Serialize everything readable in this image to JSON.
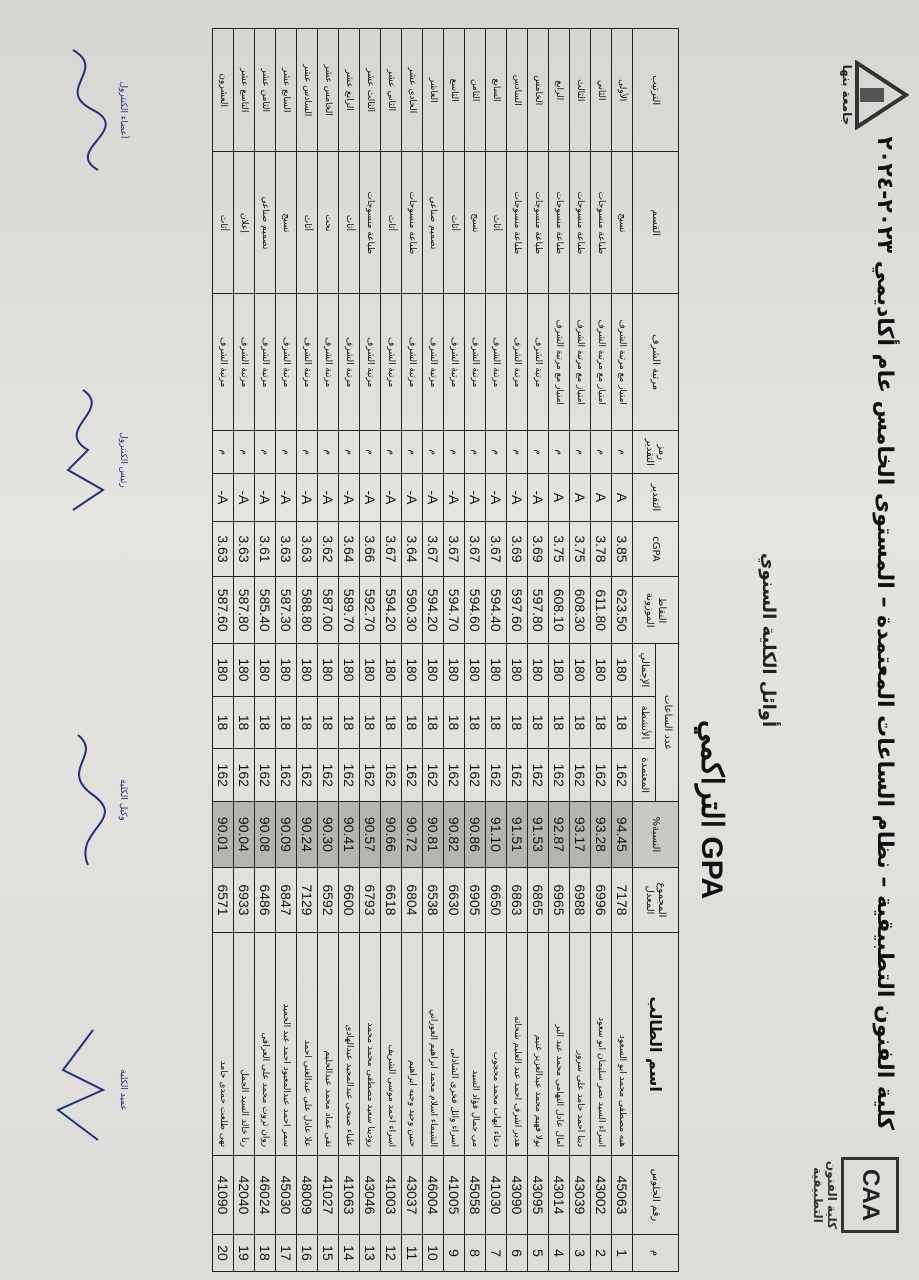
{
  "header": {
    "faculty_logo_text": "كلية الفنون التطبيقية",
    "university_logo_text": "جامعة بنها",
    "title": "كلية الفنون التطبيقية – نظام الساعات المعتمدة – المستوى الخامس عام أكاديمي ٢٠٢٣-٢٠٢٤",
    "subtitle": "أوائل الكلية السنوي",
    "gpa_title": "GPA التراكمي"
  },
  "table": {
    "columns": {
      "index": "م",
      "seat": "رقم الجلوس",
      "name": "اسم الطالب",
      "total": "المجموع المعدل",
      "percent": "النسبة%",
      "hours": "عدد الساعات",
      "hours_credit": "المعتمدة",
      "hours_activity": "الأنشطة",
      "hours_total": "الإجمالي",
      "points": "النقاط الموزونة",
      "cgpa": "cGPA",
      "grade": "التقدير",
      "grade_code": "رمز التقدير",
      "honor": "مرتبة الشرف",
      "department": "القسم",
      "rank": "الترتيب"
    },
    "rows": [
      {
        "n": "1",
        "seat": "45063",
        "name": "هبه مصطفى محمد ابو السعود",
        "total": "7178",
        "pct": "94.45",
        "h1": "162",
        "h2": "18",
        "h3": "180",
        "pts": "623.50",
        "cgpa": "3.85",
        "grade": "A",
        "code": "م",
        "honor": "امتياز مع مرتبة الشرف",
        "dept": "نسيج",
        "rank": "الأولى"
      },
      {
        "n": "2",
        "seat": "43002",
        "name": "اسراء السيد نصر سليمان ابو سعود",
        "total": "6996",
        "pct": "93.28",
        "h1": "162",
        "h2": "18",
        "h3": "180",
        "pts": "611.80",
        "cgpa": "3.78",
        "grade": "A",
        "code": "م",
        "honor": "امتياز مع مرتبة الشرف",
        "dept": "طباعة منسوجات",
        "rank": "الثاني"
      },
      {
        "n": "3",
        "seat": "43039",
        "name": "دينا احمد حامد على سرور",
        "total": "6988",
        "pct": "93.17",
        "h1": "162",
        "h2": "18",
        "h3": "180",
        "pts": "608.30",
        "cgpa": "3.75",
        "grade": "A",
        "code": "م",
        "honor": "امتياز مع مرتبة الشرف",
        "dept": "طباعة منسوجات",
        "rank": "الثالث"
      },
      {
        "n": "4",
        "seat": "43014",
        "name": "امال عادل التهامى محمد عبد البر",
        "total": "6965",
        "pct": "92.87",
        "h1": "162",
        "h2": "18",
        "h3": "180",
        "pts": "608.10",
        "cgpa": "3.75",
        "grade": "A",
        "code": "م",
        "honor": "امتياز مع مرتبة الشرف",
        "dept": "طباعة منسوجات",
        "rank": "الرابع"
      },
      {
        "n": "5",
        "seat": "43095",
        "name": "بولا فهيم محمد عبدالعزيز غنيم",
        "total": "6865",
        "pct": "91.53",
        "h1": "162",
        "h2": "18",
        "h3": "180",
        "pts": "597.80",
        "cgpa": "3.69",
        "grade": "A-",
        "code": "م",
        "honor": "مرتبة الشرف",
        "dept": "طباعة منسوجات",
        "rank": "الخامس"
      },
      {
        "n": "6",
        "seat": "43090",
        "name": "هدير اشرف احمد عبد العليم شحاته",
        "total": "6863",
        "pct": "91.51",
        "h1": "162",
        "h2": "18",
        "h3": "180",
        "pts": "597.60",
        "cgpa": "3.69",
        "grade": "A-",
        "code": "م",
        "honor": "مرتبة الشرف",
        "dept": "طباعة منسوجات",
        "rank": "السادس"
      },
      {
        "n": "7",
        "seat": "41030",
        "name": "دعاء ايهاب محمد محجوب",
        "total": "6650",
        "pct": "91.10",
        "h1": "162",
        "h2": "18",
        "h3": "180",
        "pts": "594.40",
        "cgpa": "3.67",
        "grade": "A-",
        "code": "م",
        "honor": "مرتبة الشرف",
        "dept": "أثاث",
        "rank": "السابع"
      },
      {
        "n": "8",
        "seat": "45058",
        "name": "مى جمال فؤاد السيد",
        "total": "6905",
        "pct": "90.86",
        "h1": "162",
        "h2": "18",
        "h3": "180",
        "pts": "594.60",
        "cgpa": "3.67",
        "grade": "A-",
        "code": "م",
        "honor": "مرتبة الشرف",
        "dept": "نسيج",
        "rank": "الثامن"
      },
      {
        "n": "9",
        "seat": "41005",
        "name": "اسراء وائل فخرى الشاذلى",
        "total": "6630",
        "pct": "90.82",
        "h1": "162",
        "h2": "18",
        "h3": "180",
        "pts": "594.70",
        "cgpa": "3.67",
        "grade": "A-",
        "code": "م",
        "honor": "مرتبة الشرف",
        "dept": "أثاث",
        "rank": "التاسع"
      },
      {
        "n": "10",
        "seat": "46004",
        "name": "الشيماء اسلام محمد ابراهيم العوراني",
        "total": "6538",
        "pct": "90.81",
        "h1": "162",
        "h2": "18",
        "h3": "180",
        "pts": "594.20",
        "cgpa": "3.67",
        "grade": "A-",
        "code": "م",
        "honor": "مرتبة الشرف",
        "dept": "تصميم صناعي",
        "rank": "العاشر"
      },
      {
        "n": "11",
        "seat": "43037",
        "name": "حنين وحيد وجيه ابراهيم",
        "total": "6804",
        "pct": "90.72",
        "h1": "162",
        "h2": "18",
        "h3": "180",
        "pts": "590.30",
        "cgpa": "3.64",
        "grade": "A-",
        "code": "م",
        "honor": "مرتبة الشرف",
        "dept": "طباعة منسوجات",
        "rank": "الحادي عشر"
      },
      {
        "n": "12",
        "seat": "41003",
        "name": "اسراء احمد موسى الشريف",
        "total": "6618",
        "pct": "90.66",
        "h1": "162",
        "h2": "18",
        "h3": "180",
        "pts": "594.20",
        "cgpa": "3.67",
        "grade": "A-",
        "code": "م",
        "honor": "مرتبة الشرف",
        "dept": "أثاث",
        "rank": "الثاني عشر"
      },
      {
        "n": "13",
        "seat": "43046",
        "name": "رودينا سعيد مصطفى محمد محمد",
        "total": "6793",
        "pct": "90.57",
        "h1": "162",
        "h2": "18",
        "h3": "180",
        "pts": "592.70",
        "cgpa": "3.66",
        "grade": "A-",
        "code": "م",
        "honor": "مرتبة الشرف",
        "dept": "طباعة منسوجات",
        "rank": "الثالث عشر"
      },
      {
        "n": "14",
        "seat": "41063",
        "name": "علياء صبحى عبدالمجيد عبدالهادى",
        "total": "6600",
        "pct": "90.41",
        "h1": "162",
        "h2": "18",
        "h3": "180",
        "pts": "589.70",
        "cgpa": "3.64",
        "grade": "A-",
        "code": "م",
        "honor": "مرتبة الشرف",
        "dept": "أثاث",
        "rank": "الرابع عشر"
      },
      {
        "n": "15",
        "seat": "41027",
        "name": "تقى عماد محمد عبدالحليم",
        "total": "6592",
        "pct": "90.30",
        "h1": "162",
        "h2": "18",
        "h3": "180",
        "pts": "587.00",
        "cgpa": "3.62",
        "grade": "A-",
        "code": "م",
        "honor": "مرتبة الشرف",
        "dept": "نحت",
        "rank": "الخامس عشر"
      },
      {
        "n": "16",
        "seat": "48009",
        "name": "علا عادل على عبدالغنى احمد",
        "total": "7129",
        "pct": "90.24",
        "h1": "162",
        "h2": "18",
        "h3": "180",
        "pts": "588.80",
        "cgpa": "3.63",
        "grade": "A-",
        "code": "م",
        "honor": "مرتبة الشرف",
        "dept": "أثاث",
        "rank": "السادس عشر"
      },
      {
        "n": "17",
        "seat": "45030",
        "name": "سمر احمد عبدالمعبود احمد عبد الحميد",
        "total": "6847",
        "pct": "90.09",
        "h1": "162",
        "h2": "18",
        "h3": "180",
        "pts": "587.30",
        "cgpa": "3.63",
        "grade": "A-",
        "code": "م",
        "honor": "مرتبة الشرف",
        "dept": "نسيج",
        "rank": "السابع عشر"
      },
      {
        "n": "18",
        "seat": "46024",
        "name": "روان ثروت محمد على العرافى",
        "total": "6486",
        "pct": "90.08",
        "h1": "162",
        "h2": "18",
        "h3": "180",
        "pts": "585.40",
        "cgpa": "3.61",
        "grade": "A-",
        "code": "م",
        "honor": "مرتبة الشرف",
        "dept": "تصميم صناعي",
        "rank": "الثامن عشر"
      },
      {
        "n": "19",
        "seat": "42040",
        "name": "رنا خالد السيد الجمل",
        "total": "6933",
        "pct": "90.04",
        "h1": "162",
        "h2": "18",
        "h3": "180",
        "pts": "587.80",
        "cgpa": "3.63",
        "grade": "A-",
        "code": "م",
        "honor": "مرتبة الشرف",
        "dept": "إعلان",
        "rank": "التاسع عشر"
      },
      {
        "n": "20",
        "seat": "41090",
        "name": "نهى طلعت حمدى حامد",
        "total": "6571",
        "pct": "90.01",
        "h1": "162",
        "h2": "18",
        "h3": "180",
        "pts": "587.60",
        "cgpa": "3.63",
        "grade": "A-",
        "code": "م",
        "honor": "مرتبة الشرف",
        "dept": "أثاث",
        "rank": "العشرون"
      }
    ]
  },
  "signatures": [
    {
      "role": "أعضاء الكنترول"
    },
    {
      "role": "رئيس الكنترول"
    },
    {
      "role": "وكيل الكلية"
    },
    {
      "role": "عميد الكلية"
    }
  ],
  "colors": {
    "ink": "#23307a",
    "highlight": "#b5b4b1"
  }
}
